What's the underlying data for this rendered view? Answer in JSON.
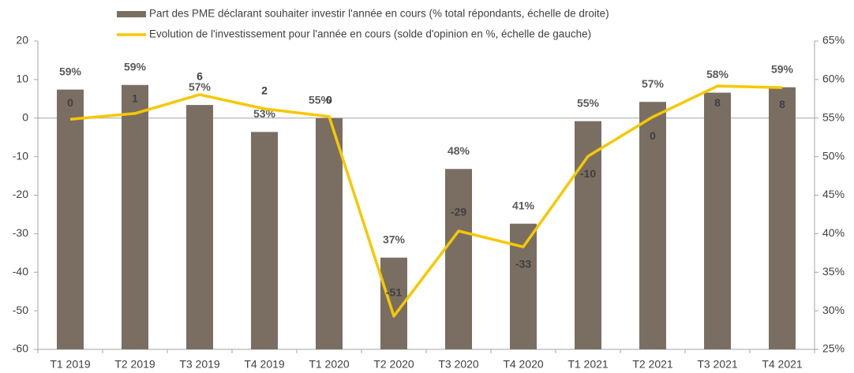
{
  "chart_data": {
    "type": "combo",
    "categories": [
      "T1 2019",
      "T2 2019",
      "T3 2019",
      "T4 2019",
      "T1 2020",
      "T2 2020",
      "T3 2020",
      "T4 2020",
      "T1 2021",
      "T2 2021",
      "T3 2021",
      "T4 2021"
    ],
    "series": [
      {
        "name": "Part des PME déclarant souhaiter investir l'année en cours (% total répondants, échelle de droite)",
        "type": "bar",
        "axis": "y2",
        "color": "#7a6e62",
        "values": [
          58.7,
          59.3,
          56.7,
          53.2,
          55.0,
          36.9,
          48.4,
          41.3,
          54.6,
          57.1,
          58.3,
          59.0
        ],
        "value_labels": [
          "59%",
          "59%",
          "57%",
          "53%",
          "55%",
          "37%",
          "48%",
          "41%",
          "55%",
          "57%",
          "58%",
          "59%"
        ]
      },
      {
        "name": "Evolution de l'investissement pour l'année en cours (solde d'opinion en %, échelle de gauche)",
        "type": "line",
        "axis": "y",
        "color": "#f5c800",
        "values": [
          -0.3,
          1.2,
          6.1,
          2.4,
          0.4,
          -51.4,
          -29.3,
          -33.4,
          -9.9,
          0.3,
          8.3,
          7.9
        ],
        "value_labels": [
          "0",
          "1",
          "6",
          "2",
          "0",
          "-51",
          "-29",
          "-33",
          "-10",
          "0",
          "8",
          "8"
        ]
      }
    ],
    "ylim": [
      -60,
      20
    ],
    "yticks": [
      -60,
      -50,
      -40,
      -30,
      -20,
      -10,
      0,
      10,
      20
    ],
    "y2lim": [
      25,
      65
    ],
    "y2ticks": [
      {
        "value": 25,
        "label": "25%"
      },
      {
        "value": 30,
        "label": "30%"
      },
      {
        "value": 35,
        "label": "35%"
      },
      {
        "value": 40,
        "label": "40%"
      },
      {
        "value": 45,
        "label": "45%"
      },
      {
        "value": 50,
        "label": "50%"
      },
      {
        "value": 55,
        "label": "55%"
      },
      {
        "value": 60,
        "label": "60%"
      },
      {
        "value": 65,
        "label": "65%"
      }
    ],
    "grid": false,
    "legend": "top"
  }
}
